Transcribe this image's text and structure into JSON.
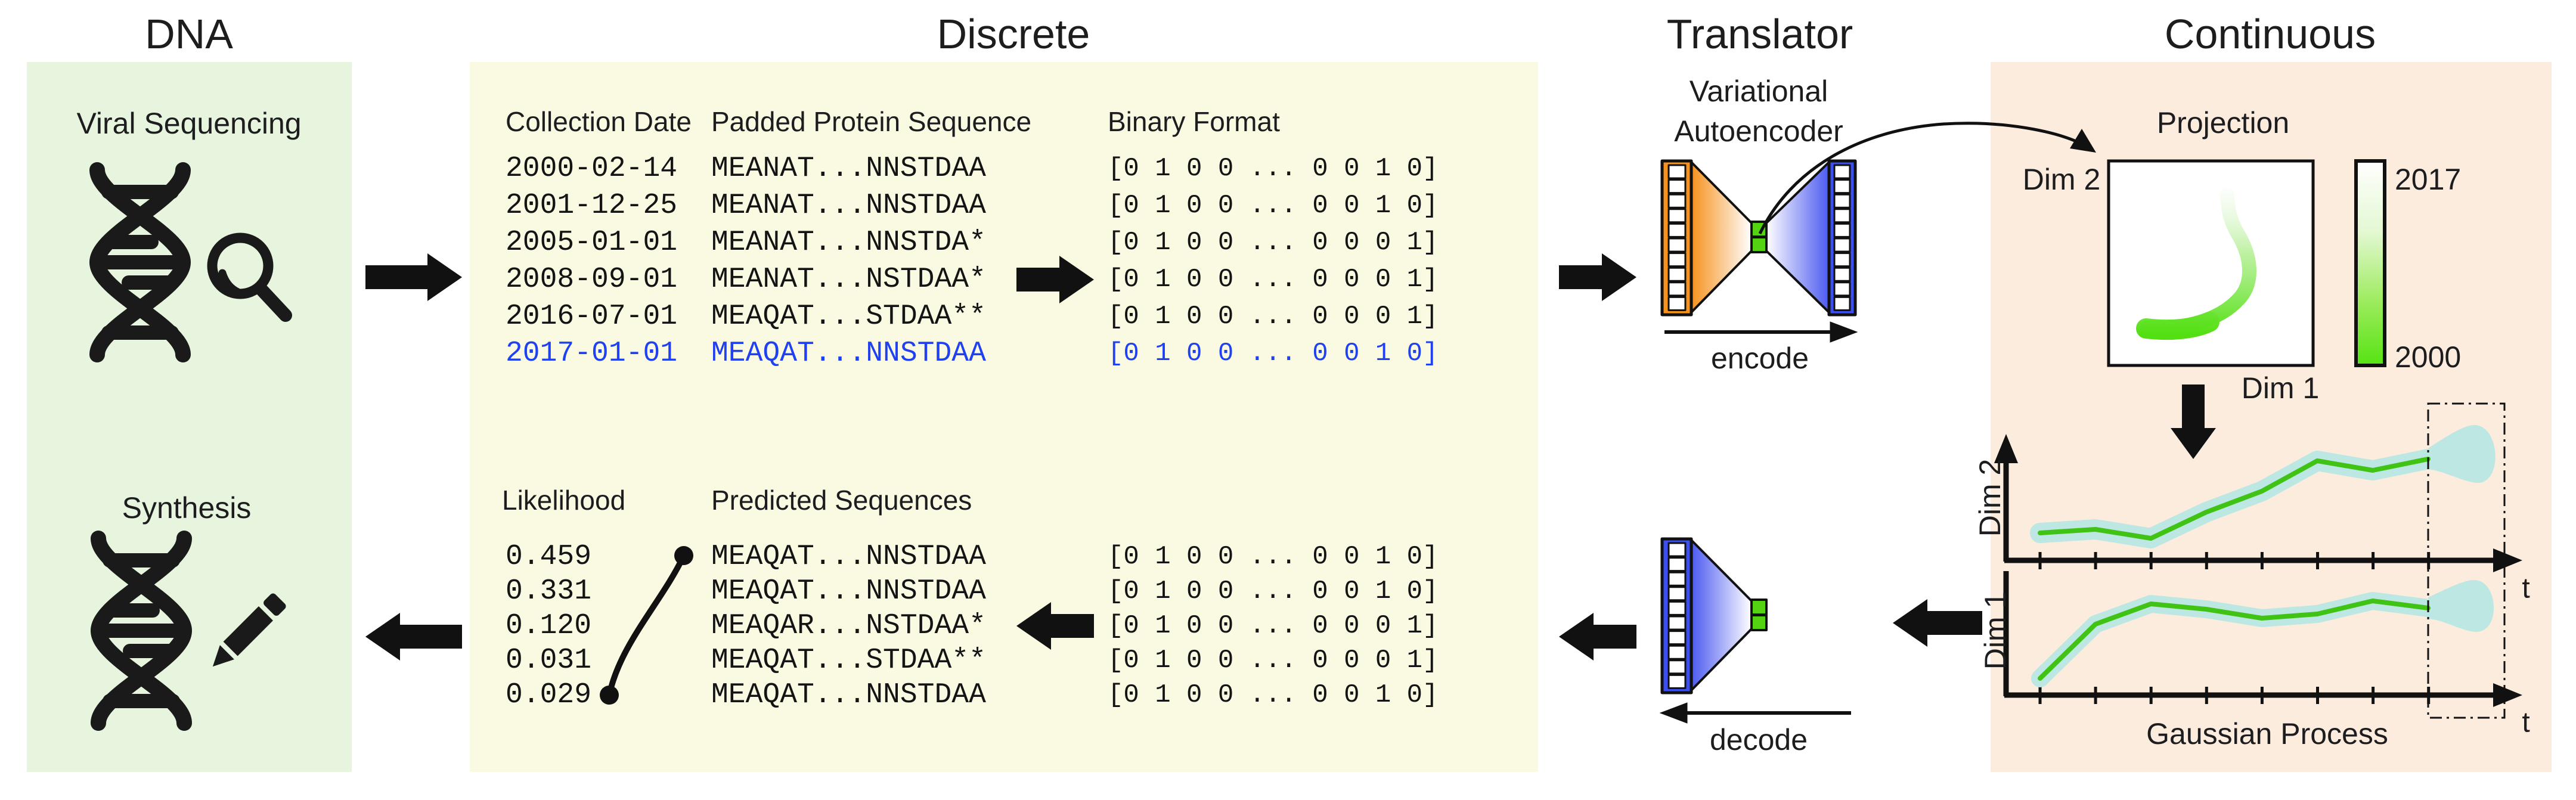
{
  "titles": {
    "dna": "DNA",
    "discrete": "Discrete",
    "translator": "Translator",
    "continuous": "Continuous"
  },
  "dna_panel": {
    "viral_sequencing_label": "Viral Sequencing",
    "synthesis_label": "Synthesis"
  },
  "discrete_panel": {
    "top_table": {
      "headers": {
        "date": "Collection Date",
        "sequence": "Padded Protein Sequence",
        "binary": "Binary Format"
      },
      "rows": [
        {
          "date": "2000-02-14",
          "sequence": "MEANAT...NNSTDAA",
          "binary": "[0 1 0 0 ... 0 0 1 0]",
          "highlighted": false
        },
        {
          "date": "2001-12-25",
          "sequence": "MEANAT...NNSTDAA",
          "binary": "[0 1 0 0 ... 0 0 1 0]",
          "highlighted": false
        },
        {
          "date": "2005-01-01",
          "sequence": "MEANAT...NNSTDA*",
          "binary": "[0 1 0 0 ... 0 0 0 1]",
          "highlighted": false
        },
        {
          "date": "2008-09-01",
          "sequence": "MEANAT...NSTDAA*",
          "binary": "[0 1 0 0 ... 0 0 0 1]",
          "highlighted": false
        },
        {
          "date": "2016-07-01",
          "sequence": "MEAQAT...STDAA**",
          "binary": "[0 1 0 0 ... 0 0 0 1]",
          "highlighted": false
        },
        {
          "date": "2017-01-01",
          "sequence": "MEAQAT...NNSTDAA",
          "binary": "[0 1 0 0 ... 0 0 1 0]",
          "highlighted": true
        }
      ]
    },
    "bottom_table": {
      "headers": {
        "likelihood": "Likelihood",
        "sequence": "Predicted Sequences"
      },
      "rows": [
        {
          "likelihood": "0.459",
          "sequence": "MEAQAT...NNSTDAA",
          "binary": "[0 1 0 0 ... 0 0 1 0]"
        },
        {
          "likelihood": "0.331",
          "sequence": "MEAQAT...NNSTDAA",
          "binary": "[0 1 0 0 ... 0 0 1 0]"
        },
        {
          "likelihood": "0.120",
          "sequence": "MEAQAR...NSTDAA*",
          "binary": "[0 1 0 0 ... 0 0 0 1]"
        },
        {
          "likelihood": "0.031",
          "sequence": "MEAQAT...STDAA**",
          "binary": "[0 1 0 0 ... 0 0 0 1]"
        },
        {
          "likelihood": "0.029",
          "sequence": "MEAQAT...NNSTDAA",
          "binary": "[0 1 0 0 ... 0 0 1 0]"
        }
      ]
    }
  },
  "translator_panel": {
    "vae_label_line1": "Variational",
    "vae_label_line2": "Autoencoder",
    "encode_label": "encode",
    "decode_label": "decode"
  },
  "continuous_panel": {
    "projection": {
      "title": "Projection",
      "x_axis_label": "Dim 1",
      "y_axis_label": "Dim 2",
      "colorbar_top_label": "2017",
      "colorbar_bottom_label": "2000"
    },
    "gp": {
      "title": "Gaussian Process",
      "top_axis_label": "Dim 2",
      "bottom_axis_label": "Dim 1",
      "t_label": "t",
      "dim2_line": [
        [
          3422,
          894
        ],
        [
          3515,
          888
        ],
        [
          3608,
          903
        ],
        [
          3701,
          859
        ],
        [
          3794,
          824
        ],
        [
          3887,
          773
        ],
        [
          3980,
          789
        ],
        [
          4073,
          770
        ]
      ],
      "dim1_line": [
        [
          3422,
          1138
        ],
        [
          3515,
          1047
        ],
        [
          3608,
          1013
        ],
        [
          3701,
          1022
        ],
        [
          3794,
          1037
        ],
        [
          3887,
          1030
        ],
        [
          3980,
          1008
        ],
        [
          4073,
          1020
        ]
      ]
    }
  },
  "colors": {
    "panel_green": "#e7f5de",
    "panel_yellow": "#fafae3",
    "panel_peach": "#fcecdd",
    "highlight_blue": "#1f41f0",
    "encoder_orange": "#f6921e",
    "decoder_blue": "#3c4ff0",
    "latent_green": "#54d313",
    "gp_line_green": "#41c316",
    "gp_band_cyan": "#bce7e3",
    "colorbar_green": "#55e312",
    "ink": "#111111"
  }
}
